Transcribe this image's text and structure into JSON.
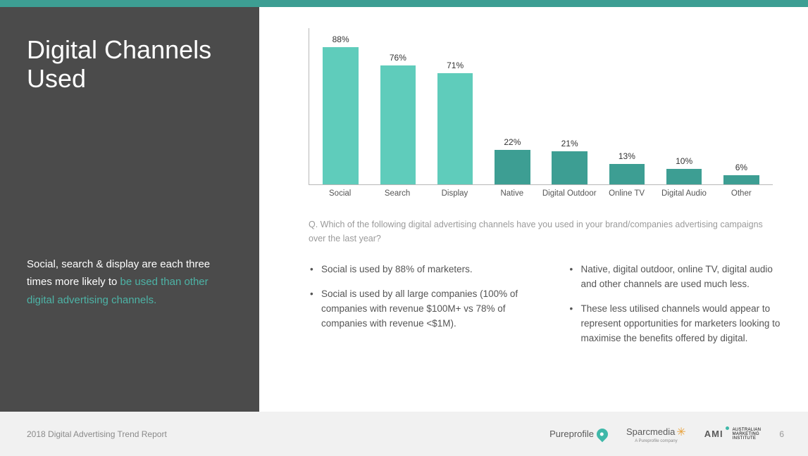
{
  "colors": {
    "topbar": "#3d9e93",
    "sidebar_bg": "#4b4b4b",
    "title_color": "#ffffff",
    "subtitle_plain": "#ffffff",
    "subtitle_accent": "#4db3a6",
    "axis": "#b8b8b8",
    "bar_label": "#555555",
    "bar_value": "#333333",
    "question_color": "#9a9a9a",
    "bullet_color": "#555555",
    "footer_bg": "#f1f1f1",
    "footer_text": "#8a8a8a",
    "pagenum": "#999999",
    "logo_text": "#5a5a5a",
    "pin": "#3fb8a9",
    "spark": "#e8a13a",
    "ami_dot": "#3fb8a9"
  },
  "title": "Digital Channels Used",
  "title_fontsize": 36,
  "subtitle_fontsize": 15,
  "subtitle_plain": "Social, search & display are each three times more likely to ",
  "subtitle_accent": "be used than other digital advertising channels.",
  "chart": {
    "type": "bar",
    "y_max": 100,
    "bar_width_pct": 62,
    "bars": [
      {
        "label": "Social",
        "value": 88,
        "value_label": "88%",
        "color": "#5fccbb"
      },
      {
        "label": "Search",
        "value": 76,
        "value_label": "76%",
        "color": "#5fccbb"
      },
      {
        "label": "Display",
        "value": 71,
        "value_label": "71%",
        "color": "#5fccbb"
      },
      {
        "label": "Native",
        "value": 22,
        "value_label": "22%",
        "color": "#3d9e93"
      },
      {
        "label": "Digital Outdoor",
        "value": 21,
        "value_label": "21%",
        "color": "#3d9e93"
      },
      {
        "label": "Online TV",
        "value": 13,
        "value_label": "13%",
        "color": "#3d9e93"
      },
      {
        "label": "Digital Audio",
        "value": 10,
        "value_label": "10%",
        "color": "#3d9e93"
      },
      {
        "label": "Other",
        "value": 6,
        "value_label": "6%",
        "color": "#3d9e93"
      }
    ]
  },
  "question": "Q. Which of the following digital advertising channels have you used in your brand/companies advertising campaigns over the last year?",
  "bullets_left": [
    "Social is used by 88% of marketers.",
    "Social is used by all large companies (100% of companies with revenue $100M+ vs 78% of companies with revenue <$1M)."
  ],
  "bullets_right": [
    "Native, digital outdoor, online TV, digital audio and other channels are used much less.",
    "These less utilised channels would appear to represent opportunities for marketers looking to maximise the benefits offered by digital."
  ],
  "footer": {
    "report_title": "2018 Digital Advertising Trend Report",
    "logos": {
      "pureprofile": "Pureprofile",
      "sparcmedia": "Sparcmedia",
      "sparcmedia_sub": "A Pureprofile company",
      "ami": "AMI",
      "ami_sub1": "AUSTRALIAN",
      "ami_sub2": "MARKETING",
      "ami_sub3": "INSTITUTE"
    },
    "page_number": "6"
  }
}
